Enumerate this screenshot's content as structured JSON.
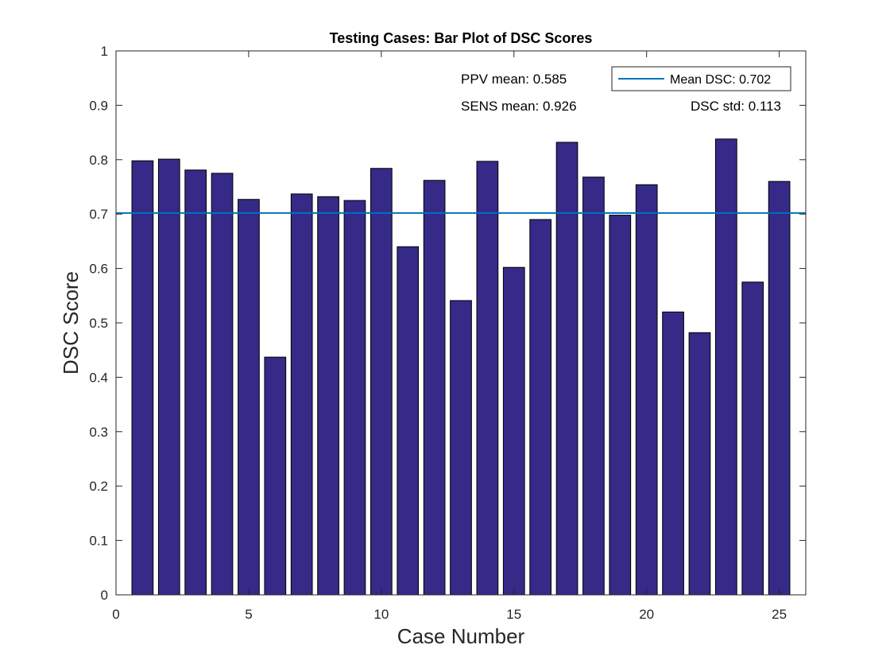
{
  "chart_data": {
    "type": "bar",
    "title": "Testing Cases: Bar Plot of DSC Scores",
    "xlabel": "Case Number",
    "ylabel": "DSC Score",
    "xlim": [
      0,
      26
    ],
    "ylim": [
      0,
      1
    ],
    "xticks": [
      0,
      5,
      10,
      15,
      20,
      25
    ],
    "xtick_labels": [
      "0",
      "5",
      "10",
      "15",
      "20",
      "25"
    ],
    "yticks": [
      0,
      0.1,
      0.2,
      0.3,
      0.4,
      0.5,
      0.6,
      0.7,
      0.8,
      0.9,
      1
    ],
    "ytick_labels": [
      "0",
      "0.1",
      "0.2",
      "0.3",
      "0.4",
      "0.5",
      "0.6",
      "0.7",
      "0.8",
      "0.9",
      "1"
    ],
    "categories": [
      1,
      2,
      3,
      4,
      5,
      6,
      7,
      8,
      9,
      10,
      11,
      12,
      13,
      14,
      15,
      16,
      17,
      18,
      19,
      20,
      21,
      22,
      23,
      24,
      25
    ],
    "values": [
      0.798,
      0.801,
      0.781,
      0.775,
      0.727,
      0.437,
      0.737,
      0.732,
      0.725,
      0.784,
      0.64,
      0.762,
      0.541,
      0.797,
      0.602,
      0.69,
      0.832,
      0.768,
      0.698,
      0.754,
      0.52,
      0.482,
      0.838,
      0.575,
      0.76
    ],
    "bar_color": "#352a87",
    "mean_line": {
      "value": 0.702,
      "label": "Mean DSC: 0.702",
      "color": "#0072bd"
    },
    "legend_position": "top-right",
    "annotations": {
      "ppv": "PPV mean: 0.585",
      "sens": "SENS mean: 0.926",
      "dsc_std": "DSC std: 0.113"
    },
    "grid": false
  }
}
